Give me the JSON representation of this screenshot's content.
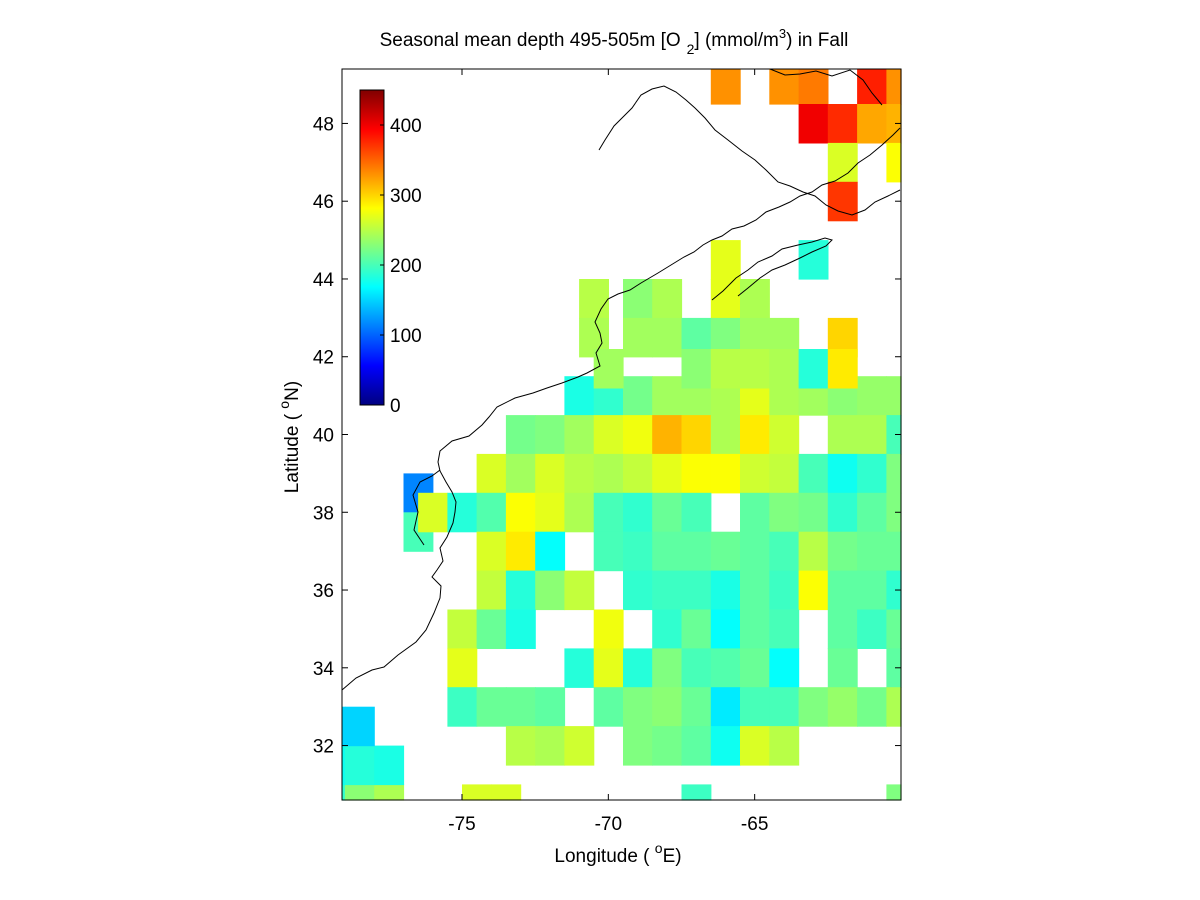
{
  "chart_data": {
    "type": "heatmap",
    "title": {
      "part1": "Seasonal mean depth 495-505m [O",
      "subscript": "2",
      "part2": "] (mmol/m",
      "superscript": "3",
      "part3": ") in  Fall"
    },
    "xlabel": {
      "prefix": "Longitude ( ",
      "superscript": "o",
      "suffix": "E)"
    },
    "ylabel": {
      "prefix": "Latitude ( ",
      "superscript": "o",
      "suffix": "N)"
    },
    "xlim": [
      -79.1,
      -60.0
    ],
    "ylim": [
      30.6,
      49.4
    ],
    "x_ticks": [
      -75,
      -70,
      -65
    ],
    "x_tick_labels": [
      "-75",
      "-70",
      "-65"
    ],
    "y_ticks": [
      32,
      34,
      36,
      38,
      40,
      42,
      44,
      46,
      48
    ],
    "y_tick_labels": [
      "32",
      "34",
      "36",
      "38",
      "40",
      "42",
      "44",
      "46",
      "48"
    ],
    "grid": false,
    "cell_size_deg": 1,
    "colorbar": {
      "range": [
        0,
        450
      ],
      "colormap": "jet",
      "ticks": [
        0,
        100,
        200,
        300,
        400
      ],
      "tick_labels": [
        "0",
        "100",
        "200",
        "300",
        "400"
      ],
      "placement": "inside-top-left"
    },
    "cells": [
      [
        -79.5,
        30.5,
        190
      ],
      [
        -78.5,
        30.5,
        230
      ],
      [
        -77.5,
        30.5,
        245
      ],
      [
        -79.5,
        31.5,
        175
      ],
      [
        -78.5,
        31.5,
        185
      ],
      [
        -77.5,
        31.5,
        180
      ],
      [
        -79.5,
        32.5,
        150
      ],
      [
        -78.5,
        32.5,
        150
      ],
      [
        -76.5,
        38.5,
        115
      ],
      [
        -76.5,
        37.5,
        200
      ],
      [
        -70.5,
        43.5,
        250
      ],
      [
        -70.5,
        42.5,
        245
      ],
      [
        -71.0,
        41.0,
        180
      ],
      [
        -70.0,
        41.0,
        190
      ],
      [
        -69.0,
        41.0,
        220
      ],
      [
        -68.0,
        41.0,
        240
      ],
      [
        -67.0,
        41.0,
        240
      ],
      [
        -66.0,
        41.0,
        245
      ],
      [
        -65.0,
        41.0,
        270
      ],
      [
        -64.0,
        41.0,
        245
      ],
      [
        -63.0,
        41.0,
        240
      ],
      [
        -62.0,
        41.0,
        230
      ],
      [
        -61.0,
        41.0,
        235
      ],
      [
        -60.0,
        41.0,
        235
      ],
      [
        -73.0,
        40.0,
        220
      ],
      [
        -72.0,
        40.0,
        225
      ],
      [
        -71.0,
        40.0,
        240
      ],
      [
        -70.0,
        40.0,
        265
      ],
      [
        -69.0,
        40.0,
        275
      ],
      [
        -68.0,
        40.0,
        315
      ],
      [
        -67.0,
        40.0,
        300
      ],
      [
        -66.0,
        40.0,
        245
      ],
      [
        -65.0,
        40.0,
        290
      ],
      [
        -64.0,
        40.0,
        260
      ],
      [
        -62.0,
        40.0,
        245
      ],
      [
        -61.0,
        40.0,
        245
      ],
      [
        -60.0,
        40.0,
        200
      ],
      [
        -74.0,
        39.0,
        265
      ],
      [
        -73.0,
        39.0,
        240
      ],
      [
        -72.0,
        39.0,
        265
      ],
      [
        -71.0,
        39.0,
        250
      ],
      [
        -70.0,
        39.0,
        245
      ],
      [
        -69.0,
        39.0,
        255
      ],
      [
        -68.0,
        39.0,
        270
      ],
      [
        -67.0,
        39.0,
        280
      ],
      [
        -66.0,
        39.0,
        280
      ],
      [
        -65.0,
        39.0,
        260
      ],
      [
        -64.0,
        39.0,
        255
      ],
      [
        -63.0,
        39.0,
        200
      ],
      [
        -62.0,
        39.0,
        175
      ],
      [
        -61.0,
        39.0,
        190
      ],
      [
        -60.0,
        39.0,
        225
      ],
      [
        -76.0,
        38.0,
        265
      ],
      [
        -75.0,
        38.0,
        185
      ],
      [
        -74.0,
        38.0,
        205
      ],
      [
        -73.0,
        38.0,
        280
      ],
      [
        -72.0,
        38.0,
        270
      ],
      [
        -71.0,
        38.0,
        245
      ],
      [
        -70.0,
        38.0,
        200
      ],
      [
        -69.0,
        38.0,
        190
      ],
      [
        -68.0,
        38.0,
        215
      ],
      [
        -67.0,
        38.0,
        200
      ],
      [
        -65.0,
        38.0,
        210
      ],
      [
        -64.0,
        38.0,
        225
      ],
      [
        -63.0,
        38.0,
        220
      ],
      [
        -62.0,
        38.0,
        190
      ],
      [
        -61.0,
        38.0,
        210
      ],
      [
        -60.0,
        38.0,
        225
      ],
      [
        -74.0,
        37.0,
        265
      ],
      [
        -73.0,
        37.0,
        290
      ],
      [
        -72.0,
        37.0,
        170
      ],
      [
        -70.0,
        37.0,
        200
      ],
      [
        -69.0,
        37.0,
        195
      ],
      [
        -68.0,
        37.0,
        210
      ],
      [
        -67.0,
        37.0,
        210
      ],
      [
        -66.0,
        37.0,
        215
      ],
      [
        -65.0,
        37.0,
        210
      ],
      [
        -64.0,
        37.0,
        200
      ],
      [
        -63.0,
        37.0,
        250
      ],
      [
        -62.0,
        37.0,
        220
      ],
      [
        -61.0,
        37.0,
        215
      ],
      [
        -60.0,
        37.0,
        215
      ],
      [
        -74.0,
        36.0,
        255
      ],
      [
        -73.0,
        36.0,
        185
      ],
      [
        -72.0,
        36.0,
        230
      ],
      [
        -71.0,
        36.0,
        255
      ],
      [
        -69.0,
        36.0,
        190
      ],
      [
        -68.0,
        36.0,
        195
      ],
      [
        -67.0,
        36.0,
        195
      ],
      [
        -66.0,
        36.0,
        180
      ],
      [
        -65.0,
        36.0,
        210
      ],
      [
        -64.0,
        36.0,
        195
      ],
      [
        -63.0,
        36.0,
        280
      ],
      [
        -62.0,
        36.0,
        210
      ],
      [
        -61.0,
        36.0,
        210
      ],
      [
        -60.0,
        36.0,
        190
      ],
      [
        -75.0,
        35.0,
        255
      ],
      [
        -74.0,
        35.0,
        215
      ],
      [
        -73.0,
        35.0,
        180
      ],
      [
        -70.0,
        35.0,
        275
      ],
      [
        -68.0,
        35.0,
        190
      ],
      [
        -67.0,
        35.0,
        215
      ],
      [
        -66.0,
        35.0,
        170
      ],
      [
        -65.0,
        35.0,
        210
      ],
      [
        -64.0,
        35.0,
        200
      ],
      [
        -62.0,
        35.0,
        210
      ],
      [
        -61.0,
        35.0,
        195
      ],
      [
        -60.0,
        35.0,
        215
      ],
      [
        -75.0,
        34.0,
        270
      ],
      [
        -71.0,
        34.0,
        185
      ],
      [
        -70.0,
        34.0,
        270
      ],
      [
        -69.0,
        34.0,
        185
      ],
      [
        -68.0,
        34.0,
        225
      ],
      [
        -67.0,
        34.0,
        200
      ],
      [
        -66.0,
        34.0,
        205
      ],
      [
        -65.0,
        34.0,
        215
      ],
      [
        -64.0,
        34.0,
        170
      ],
      [
        -62.0,
        34.0,
        215
      ],
      [
        -60.0,
        34.0,
        210
      ],
      [
        -75.0,
        33.0,
        195
      ],
      [
        -74.0,
        33.0,
        215
      ],
      [
        -73.0,
        33.0,
        215
      ],
      [
        -72.0,
        33.0,
        210
      ],
      [
        -70.0,
        33.0,
        210
      ],
      [
        -69.0,
        33.0,
        225
      ],
      [
        -68.0,
        33.0,
        230
      ],
      [
        -67.0,
        33.0,
        215
      ],
      [
        -66.0,
        33.0,
        160
      ],
      [
        -65.0,
        33.0,
        200
      ],
      [
        -64.0,
        33.0,
        200
      ],
      [
        -63.0,
        33.0,
        225
      ],
      [
        -62.0,
        33.0,
        235
      ],
      [
        -61.0,
        33.0,
        220
      ],
      [
        -60.0,
        33.0,
        245
      ],
      [
        -73.0,
        32.0,
        250
      ],
      [
        -72.0,
        32.0,
        245
      ],
      [
        -71.0,
        32.0,
        260
      ],
      [
        -69.0,
        32.0,
        225
      ],
      [
        -68.0,
        32.0,
        220
      ],
      [
        -67.0,
        32.0,
        210
      ],
      [
        -66.0,
        32.0,
        175
      ],
      [
        -65.0,
        32.0,
        265
      ],
      [
        -64.0,
        32.0,
        250
      ],
      [
        -74.5,
        30.5,
        265
      ],
      [
        -73.5,
        30.5,
        265
      ],
      [
        -67.0,
        30.5,
        195
      ],
      [
        -60.0,
        30.5,
        225
      ],
      [
        -66.0,
        49.0,
        330
      ],
      [
        -64.0,
        49.0,
        330
      ],
      [
        -63.0,
        49.0,
        340
      ],
      [
        -61.0,
        49.0,
        380
      ],
      [
        -60.0,
        49.0,
        330
      ],
      [
        -63.0,
        48.0,
        400
      ],
      [
        -62.0,
        48.0,
        375
      ],
      [
        -61.0,
        48.0,
        320
      ],
      [
        -60.0,
        48.0,
        315
      ],
      [
        -62.0,
        47.0,
        265
      ],
      [
        -60.0,
        47.0,
        280
      ],
      [
        -62.0,
        46.0,
        370
      ],
      [
        -66.0,
        44.5,
        270
      ],
      [
        -63.0,
        44.5,
        185
      ],
      [
        -69.0,
        43.5,
        230
      ],
      [
        -68.0,
        43.5,
        245
      ],
      [
        -66.0,
        43.5,
        270
      ],
      [
        -65.0,
        43.5,
        245
      ],
      [
        -69.0,
        42.5,
        240
      ],
      [
        -68.0,
        42.5,
        240
      ],
      [
        -67.0,
        42.5,
        210
      ],
      [
        -66.0,
        42.5,
        225
      ],
      [
        -65.0,
        42.5,
        240
      ],
      [
        -64.0,
        42.5,
        240
      ],
      [
        -62.0,
        42.5,
        300
      ],
      [
        -70.0,
        41.7,
        240
      ],
      [
        -67.0,
        41.7,
        230
      ],
      [
        -66.0,
        41.7,
        250
      ],
      [
        -65.0,
        41.7,
        250
      ],
      [
        -64.0,
        41.7,
        245
      ],
      [
        -63.0,
        41.7,
        185
      ],
      [
        -62.0,
        41.7,
        290
      ]
    ]
  }
}
